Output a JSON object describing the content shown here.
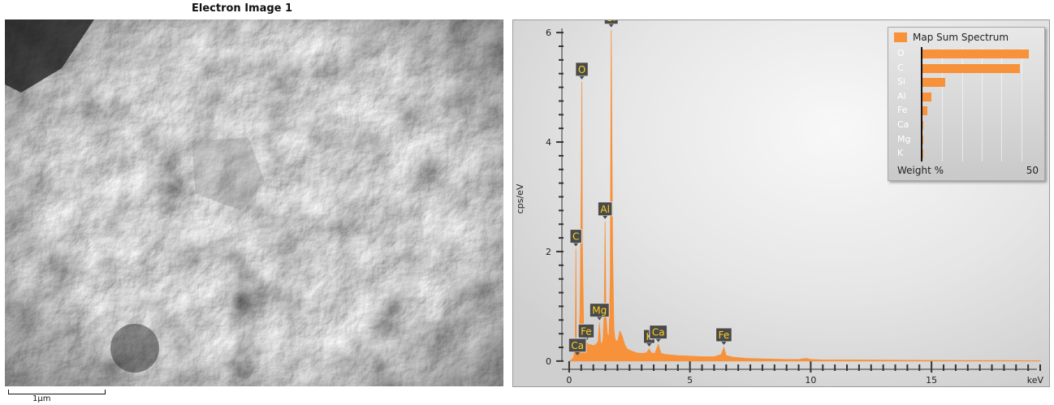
{
  "image_panel": {
    "title": "Electron Image 1",
    "scale_bar_label": "1µm"
  },
  "chart_data": {
    "type": "area",
    "xlabel": "keV",
    "ylabel": "cps/eV",
    "xlim": [
      -0.3,
      19.6
    ],
    "ylim": [
      -0.15,
      6.15
    ],
    "x_ticks": [
      0,
      5,
      10,
      15
    ],
    "y_ticks": [
      0,
      2,
      4,
      6
    ],
    "color": "#f7913a",
    "series": [
      {
        "x": [
          0.0,
          0.15,
          0.2,
          0.25,
          0.277,
          0.3,
          0.35,
          0.4,
          0.45,
          0.5,
          0.525,
          0.55,
          0.6,
          0.7,
          0.8,
          0.9,
          1.0,
          1.1,
          1.2,
          1.254,
          1.3,
          1.35,
          1.4,
          1.45,
          1.487,
          1.52,
          1.58,
          1.65,
          1.7,
          1.74,
          1.8,
          1.85,
          1.9,
          2.0,
          2.1,
          2.2,
          2.3,
          2.4,
          2.6,
          2.8,
          3.0,
          3.2,
          3.313,
          3.4,
          3.55,
          3.691,
          3.8,
          4.0,
          4.5,
          5.0,
          5.5,
          6.0,
          6.3,
          6.403,
          6.5,
          6.8,
          7.06,
          7.3,
          8.0,
          9.0,
          9.5,
          9.8,
          10.0,
          10.5,
          12.0,
          14.0,
          16.0,
          18.0,
          19.5
        ],
        "y": [
          0.0,
          0.04,
          0.1,
          0.3,
          2.05,
          0.4,
          0.25,
          0.35,
          0.9,
          3.2,
          5.1,
          2.0,
          0.6,
          0.35,
          0.3,
          0.3,
          0.28,
          0.3,
          0.35,
          0.7,
          0.35,
          0.3,
          0.4,
          0.9,
          2.55,
          0.9,
          0.5,
          0.45,
          1.5,
          6.05,
          2.0,
          0.6,
          0.4,
          0.35,
          0.55,
          0.45,
          0.3,
          0.22,
          0.18,
          0.15,
          0.14,
          0.15,
          0.22,
          0.15,
          0.14,
          0.3,
          0.14,
          0.12,
          0.1,
          0.09,
          0.08,
          0.08,
          0.12,
          0.25,
          0.1,
          0.07,
          0.06,
          0.05,
          0.04,
          0.03,
          0.03,
          0.05,
          0.03,
          0.02,
          0.02,
          0.015,
          0.01,
          0.008,
          0.005
        ]
      }
    ],
    "peak_labels": [
      {
        "label": "Si",
        "x": 1.74,
        "y": 6.05
      },
      {
        "label": "O",
        "x": 0.525,
        "y": 5.1
      },
      {
        "label": "Al",
        "x": 1.487,
        "y": 2.55
      },
      {
        "label": "C",
        "x": 0.277,
        "y": 2.05
      },
      {
        "label": "Mg",
        "x": 1.254,
        "y": 0.7
      },
      {
        "label": "Fe",
        "x": 0.705,
        "y": 0.32
      },
      {
        "label": "Ca",
        "x": 0.341,
        "y": 0.06
      },
      {
        "label": "K",
        "x": 3.313,
        "y": 0.22
      },
      {
        "label": "Ca",
        "x": 3.691,
        "y": 0.3
      },
      {
        "label": "Fe",
        "x": 6.403,
        "y": 0.25
      }
    ],
    "legend": {
      "title": "Map Sum Spectrum",
      "xlabel": "Weight %",
      "xmax_label": "50",
      "xmax": 50,
      "elements": [
        "O",
        "C",
        "Si",
        "Al",
        "Fe",
        "Ca",
        "Mg",
        "K"
      ],
      "values": [
        45.0,
        41.0,
        9.5,
        3.8,
        1.9,
        0.5,
        0.4,
        0.3
      ]
    }
  }
}
